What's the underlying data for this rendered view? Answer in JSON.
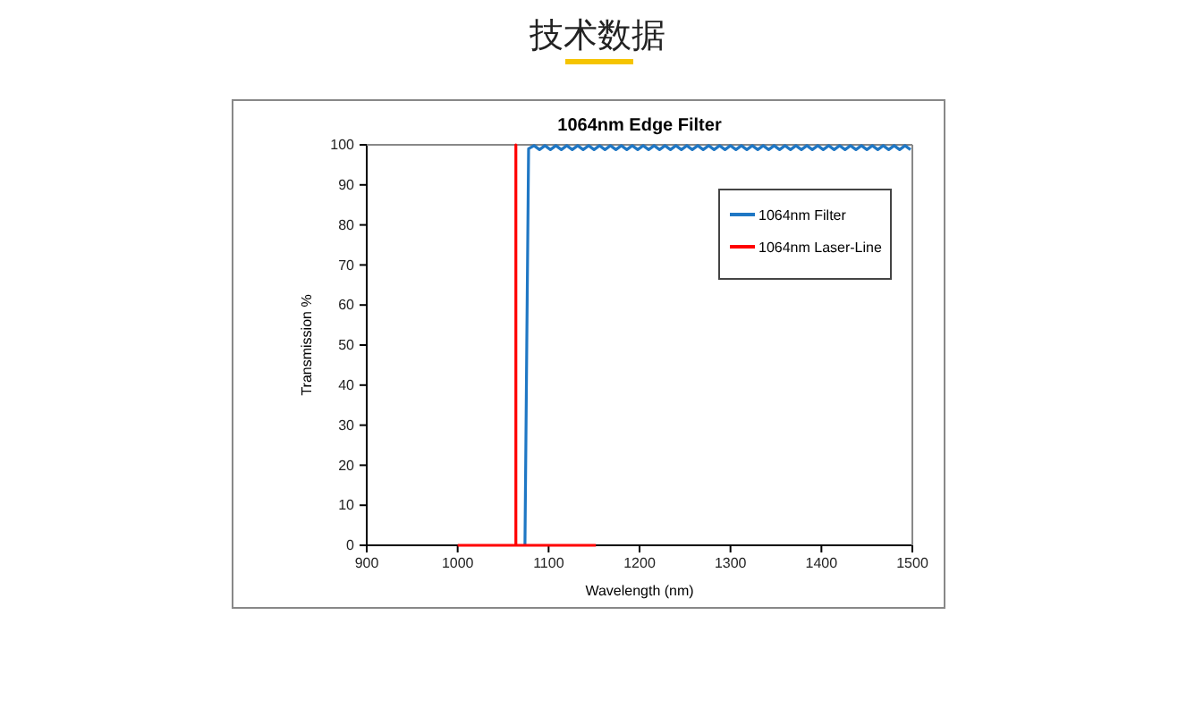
{
  "chart_data": {
    "type": "line",
    "title": "技术数据",
    "subtitle": "1064nm Edge Filter",
    "xlabel": "Wavelength (nm)",
    "ylabel": "Transmission %",
    "xlim": [
      900,
      1500
    ],
    "ylim": [
      0,
      100
    ],
    "xticks": [
      900,
      1000,
      1100,
      1200,
      1300,
      1400,
      1500
    ],
    "yticks": [
      0,
      10,
      20,
      30,
      40,
      50,
      60,
      70,
      80,
      90,
      100
    ],
    "grid": false,
    "legend": "top right",
    "line_style": "solid",
    "marker": "none",
    "series": [
      {
        "name": "1064nm Filter",
        "color": "#1f77c4",
        "x": [
          1074,
          1076,
          1078,
          1084,
          1090,
          1096,
          1102,
          1108,
          1114,
          1120,
          1126,
          1132,
          1138,
          1144,
          1150,
          1156,
          1162,
          1168,
          1174,
          1180,
          1186,
          1192,
          1198,
          1204,
          1210,
          1216,
          1222,
          1228,
          1234,
          1240,
          1246,
          1252,
          1258,
          1264,
          1270,
          1276,
          1282,
          1288,
          1294,
          1300,
          1306,
          1312,
          1318,
          1324,
          1330,
          1336,
          1342,
          1348,
          1354,
          1360,
          1366,
          1372,
          1378,
          1384,
          1390,
          1396,
          1402,
          1408,
          1414,
          1420,
          1426,
          1432,
          1438,
          1444,
          1450,
          1456,
          1462,
          1468,
          1474,
          1480,
          1486,
          1492,
          1498
        ],
        "values": [
          0,
          50,
          99,
          99.8,
          98.8,
          99.8,
          98.8,
          99.8,
          98.8,
          99.8,
          98.8,
          99.8,
          98.8,
          99.8,
          98.8,
          99.8,
          98.8,
          99.8,
          98.8,
          99.8,
          98.8,
          99.8,
          98.8,
          99.8,
          98.8,
          99.8,
          98.8,
          99.8,
          98.8,
          99.8,
          98.8,
          99.8,
          98.8,
          99.8,
          98.8,
          99.8,
          98.8,
          99.8,
          98.8,
          99.8,
          98.8,
          99.8,
          98.8,
          99.8,
          98.8,
          99.8,
          98.8,
          99.8,
          98.8,
          99.8,
          98.8,
          99.8,
          98.8,
          99.8,
          98.8,
          99.8,
          98.8,
          99.8,
          98.8,
          99.8,
          98.8,
          99.8,
          98.8,
          99.8,
          98.8,
          99.8,
          98.8,
          99.8,
          98.8,
          99.8,
          98.8,
          99.8,
          98.8
        ]
      },
      {
        "name": "1064nm Laser-Line",
        "color": "#ff0000",
        "x": [
          1000,
          1064,
          1064,
          1064,
          1064,
          1152
        ],
        "values": [
          0,
          0,
          100,
          100,
          0,
          0
        ]
      }
    ]
  }
}
